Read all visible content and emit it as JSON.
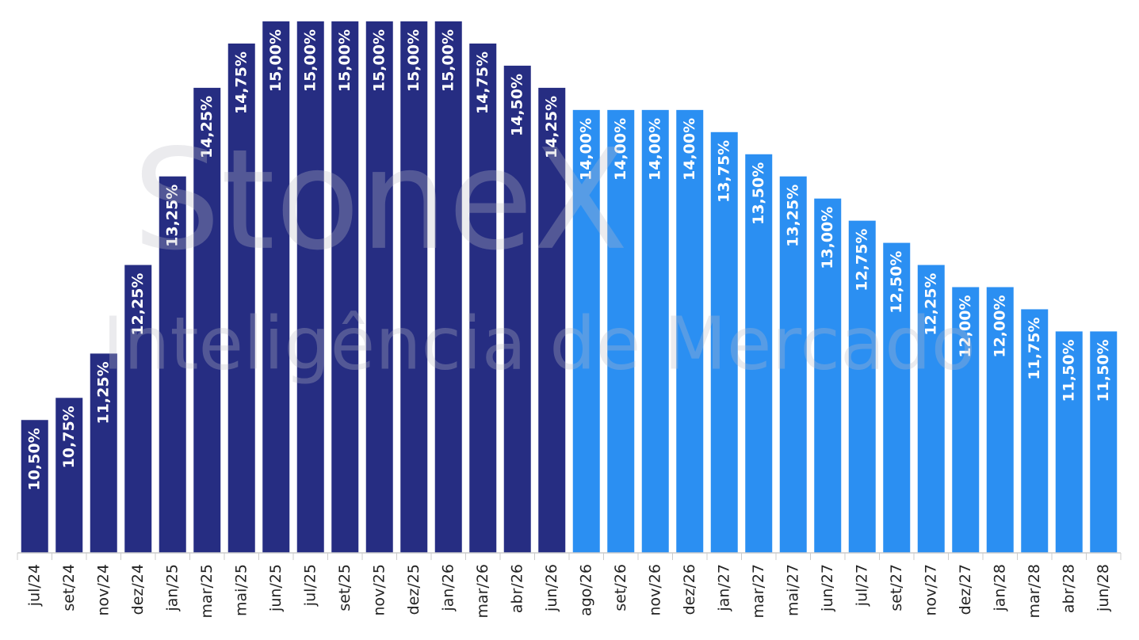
{
  "chart_data": {
    "type": "bar",
    "watermark": [
      "StoneX",
      "Inteligência de Mercado"
    ],
    "categories": [
      "jul/24",
      "set/24",
      "nov/24",
      "dez/24",
      "jan/25",
      "mar/25",
      "mai/25",
      "jun/25",
      "jul/25",
      "set/25",
      "nov/25",
      "dez/25",
      "jan/26",
      "mar/26",
      "abr/26",
      "jun/26",
      "ago/26",
      "set/26",
      "nov/26",
      "dez/26",
      "jan/27",
      "mar/27",
      "mai/27",
      "jun/27",
      "jul/27",
      "set/27",
      "nov/27",
      "dez/27",
      "jan/28",
      "mar/28",
      "abr/28",
      "jun/28"
    ],
    "values": [
      10.5,
      10.75,
      11.25,
      12.25,
      13.25,
      14.25,
      14.75,
      15,
      15,
      15,
      15,
      15,
      15,
      14.75,
      14.5,
      14.25,
      14,
      14,
      14,
      14,
      13.75,
      13.5,
      13.25,
      13,
      12.75,
      12.5,
      12.25,
      12,
      12,
      11.75,
      11.5,
      11.5
    ],
    "value_labels": [
      "10,50%",
      "10,75%",
      "11,25%",
      "12,25%",
      "13,25%",
      "14,25%",
      "14,75%",
      "15,00%",
      "15,00%",
      "15,00%",
      "15,00%",
      "15,00%",
      "15,00%",
      "14,75%",
      "14,50%",
      "14,25%",
      "14,00%",
      "14,00%",
      "14,00%",
      "14,00%",
      "13,75%",
      "13,50%",
      "13,25%",
      "13,00%",
      "12,75%",
      "12,50%",
      "12,25%",
      "12,00%",
      "12,00%",
      "11,75%",
      "11,50%",
      "11,50%"
    ],
    "colors": [
      "#262d82",
      "#262d82",
      "#262d82",
      "#262d82",
      "#262d82",
      "#262d82",
      "#262d82",
      "#262d82",
      "#262d82",
      "#262d82",
      "#262d82",
      "#262d82",
      "#262d82",
      "#262d82",
      "#262d82",
      "#262d82",
      "#2b8ff2",
      "#2b8ff2",
      "#2b8ff2",
      "#2b8ff2",
      "#2b8ff2",
      "#2b8ff2",
      "#2b8ff2",
      "#2b8ff2",
      "#2b8ff2",
      "#2b8ff2",
      "#2b8ff2",
      "#2b8ff2",
      "#2b8ff2",
      "#2b8ff2",
      "#2b8ff2",
      "#2b8ff2"
    ],
    "ylim": [
      9,
      15
    ]
  }
}
